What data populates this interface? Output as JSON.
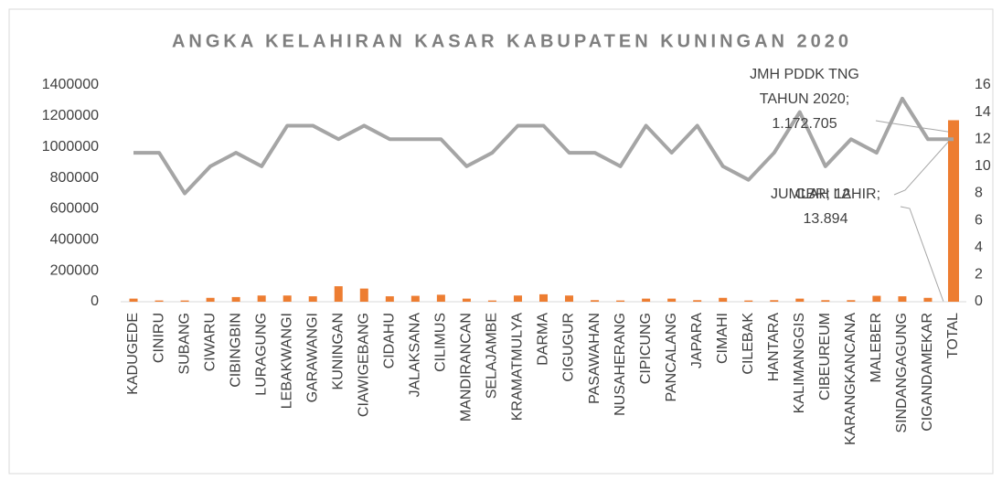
{
  "chart_data": {
    "type": "bar-line",
    "title": "ANGKA KELAHIRAN KASAR KABUPATEN KUNINGAN 2020",
    "categories": [
      "KADUGEDE",
      "CINIRU",
      "SUBANG",
      "CIWARU",
      "CIBINGBIN",
      "LURAGUNG",
      "LEBAKWANGI",
      "GARAWANGI",
      "KUNINGAN",
      "CIAWIGEBANG",
      "CIDAHU",
      "JALAKSANA",
      "CILIMUS",
      "MANDIRANCAN",
      "SELAJAMBE",
      "KRAMATMULYA",
      "DARMA",
      "CIGUGUR",
      "PASAWAHAN",
      "NUSAHERANG",
      "CIPICUNG",
      "PANCALANG",
      "JAPARA",
      "CIMAHI",
      "CILEBAK",
      "HANTARA",
      "KALIMANGGIS",
      "CIBEUREUM",
      "KARANGKANCANA",
      "MALEBER",
      "SINDANGAGUNG",
      "CIGANDAMEKAR",
      "TOTAL"
    ],
    "series": [
      {
        "name": "JMH PDDK TNG TAHUN 2020",
        "type": "bar",
        "color": "#ed7d31",
        "values": [
          20000,
          8000,
          8000,
          25000,
          30000,
          40000,
          40000,
          35000,
          100000,
          85000,
          35000,
          38000,
          45000,
          20000,
          8000,
          40000,
          48000,
          40000,
          10000,
          8000,
          20000,
          20000,
          10000,
          25000,
          8000,
          10000,
          20000,
          10000,
          10000,
          38000,
          35000,
          25000,
          1172705
        ]
      },
      {
        "name": "CBR",
        "type": "line",
        "color": "#a5a5a5",
        "axis": "y2",
        "values": [
          11,
          11,
          8,
          10,
          11,
          10,
          13,
          13,
          12,
          13,
          12,
          12,
          12,
          10,
          11,
          13,
          13,
          11,
          11,
          10,
          13,
          11,
          13,
          10,
          9,
          11,
          14,
          10,
          12,
          11,
          15,
          12,
          12
        ]
      }
    ],
    "annotations": [
      [
        "JMH PDDK TNG",
        "TAHUN 2020;",
        "1.172.705"
      ],
      [
        "JUMLAH LAHIR;",
        "13.894"
      ],
      [
        "CBR; 12"
      ]
    ],
    "ylim": [
      0,
      1400000
    ],
    "yticks": [
      0,
      200000,
      400000,
      600000,
      800000,
      1000000,
      1200000,
      1400000
    ],
    "y2lim": [
      0,
      16
    ],
    "y2ticks": [
      0,
      2,
      4,
      6,
      8,
      10,
      12,
      14,
      16
    ]
  }
}
